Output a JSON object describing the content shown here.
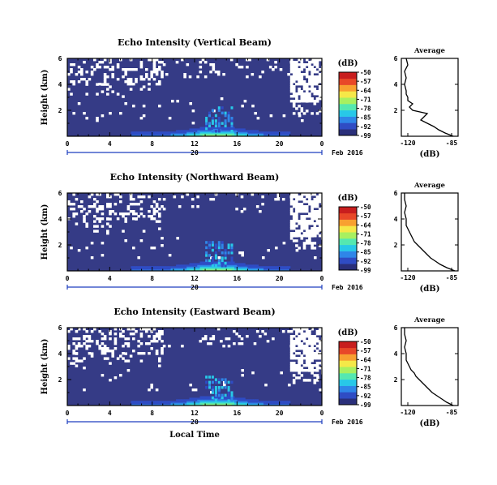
{
  "colors": {
    "field": "#353b86",
    "no_data": "#ffffff",
    "profile_line": "#000000",
    "date_rule": "#1e3fbf"
  },
  "colorbar": {
    "unit": "(dB)",
    "tick_labels": [
      "-50",
      "-57",
      "-64",
      "-71",
      "-78",
      "-85",
      "-92",
      "-99"
    ],
    "range": [
      -99,
      -50
    ],
    "colors_low_to_high": [
      "#2a2f7a",
      "#2f4cc4",
      "#2f86e8",
      "#28c8e8",
      "#55e8b0",
      "#a8f060",
      "#f5e848",
      "#f8a030",
      "#e84828",
      "#c81e1e"
    ]
  },
  "chart_data": [
    {
      "type": "heatmap",
      "title": "Echo Intensity (Vertical Beam)",
      "ylabel": "Height (km)",
      "xlabel": "",
      "x_ticks": [
        "0",
        "4",
        "8",
        "12",
        "16",
        "20",
        "0"
      ],
      "y_ticks": [
        "6",
        "4",
        "2"
      ],
      "x_range_hours": [
        0,
        24
      ],
      "y_range_km": [
        0,
        6
      ],
      "date_label": "Feb 2016",
      "day_label": "20",
      "profile": {
        "title": "Average",
        "xlabel": "(dB)",
        "x_ticks": [
          "-120",
          "-85"
        ],
        "y_ticks": [
          "6",
          "4",
          "2"
        ],
        "xlim": [
          -120,
          -85
        ],
        "heights_km": [
          0,
          0.25,
          0.5,
          0.75,
          1,
          1.25,
          1.5,
          1.75,
          2,
          2.25,
          2.5,
          2.75,
          3,
          3.25,
          3.5,
          4,
          4.5,
          5,
          5.5,
          6
        ],
        "values_db": [
          -88,
          -93,
          -97,
          -100,
          -104,
          -108,
          -106,
          -104,
          -113,
          -115,
          -113,
          -116,
          -116,
          -117,
          -117,
          -118,
          -117,
          -118,
          -116,
          -117
        ]
      }
    },
    {
      "type": "heatmap",
      "title": "Echo Intensity (Northward Beam)",
      "ylabel": "Height (km)",
      "xlabel": "",
      "x_ticks": [
        "0",
        "4",
        "8",
        "12",
        "16",
        "20",
        "0"
      ],
      "y_ticks": [
        "6",
        "4",
        "2"
      ],
      "x_range_hours": [
        0,
        24
      ],
      "y_range_km": [
        0,
        6
      ],
      "date_label": "Feb 2016",
      "day_label": "20",
      "profile": {
        "title": "Average",
        "xlabel": "(dB)",
        "x_ticks": [
          "-120",
          "-85"
        ],
        "y_ticks": [
          "6",
          "4",
          "2"
        ],
        "xlim": [
          -120,
          -85
        ],
        "heights_km": [
          0,
          0.25,
          0.5,
          0.75,
          1,
          1.25,
          1.5,
          1.75,
          2,
          2.25,
          2.5,
          2.75,
          3,
          3.25,
          3.5,
          4,
          4.5,
          5,
          5.5,
          6
        ],
        "values_db": [
          -87,
          -92,
          -96,
          -99,
          -102,
          -104,
          -106,
          -108,
          -110,
          -112,
          -113,
          -114,
          -115,
          -116,
          -117,
          -117,
          -118,
          -117,
          -118,
          -118
        ]
      }
    },
    {
      "type": "heatmap",
      "title": "Echo Intensity (Eastward Beam)",
      "ylabel": "Height (km)",
      "xlabel": "Local Time",
      "x_ticks": [
        "0",
        "4",
        "8",
        "12",
        "16",
        "20",
        "0"
      ],
      "y_ticks": [
        "6",
        "4",
        "2"
      ],
      "x_range_hours": [
        0,
        24
      ],
      "y_range_km": [
        0,
        6
      ],
      "date_label": "Feb 2016",
      "day_label": "20",
      "profile": {
        "title": "Average",
        "xlabel": "(dB)",
        "x_ticks": [
          "-120",
          "-85"
        ],
        "y_ticks": [
          "6",
          "4",
          "2"
        ],
        "xlim": [
          -120,
          -85
        ],
        "heights_km": [
          0,
          0.25,
          0.5,
          0.75,
          1,
          1.25,
          1.5,
          1.75,
          2,
          2.25,
          2.5,
          2.75,
          3,
          3.25,
          3.5,
          4,
          4.5,
          5,
          5.5,
          6
        ],
        "values_db": [
          -88,
          -92,
          -95,
          -98,
          -101,
          -103,
          -105,
          -107,
          -109,
          -111,
          -112,
          -114,
          -115,
          -116,
          -117,
          -117,
          -118,
          -117,
          -118,
          -118
        ]
      }
    }
  ]
}
